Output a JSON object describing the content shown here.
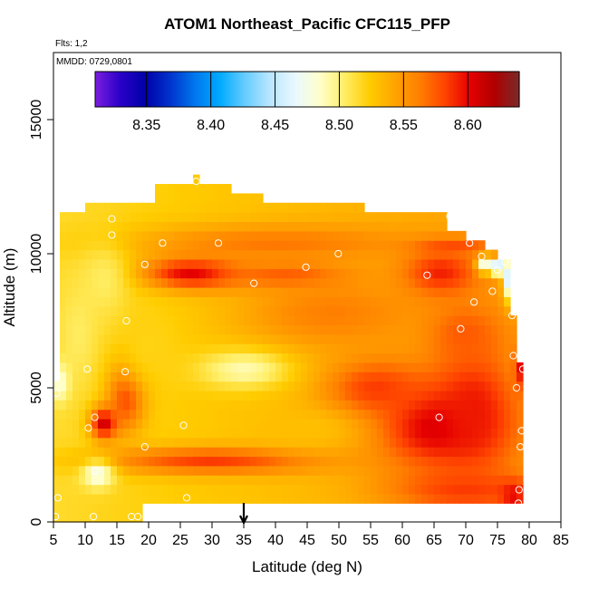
{
  "chart_data": {
    "type": "heatmap",
    "title": "ATOM1 Northeast_Pacific CFC115_PFP",
    "flights_label": "Flts: 1,2",
    "date_label": "MMDD: 0729,0801",
    "xlabel": "Latitude (deg N)",
    "ylabel": "Altitude (m)",
    "xlim": [
      5,
      85
    ],
    "ylim": [
      0,
      17500
    ],
    "x_ticks": [
      "5",
      "10",
      "15",
      "20",
      "25",
      "30",
      "35",
      "40",
      "45",
      "50",
      "55",
      "60",
      "65",
      "70",
      "75",
      "80",
      "85"
    ],
    "y_ticks": [
      "0",
      "5000",
      "10000",
      "15000"
    ],
    "colorbar": {
      "range": [
        8.31,
        8.64
      ],
      "ticks": [
        "8.35",
        "8.40",
        "8.45",
        "8.50",
        "8.55",
        "8.60"
      ],
      "colors": [
        "#7b1fe0",
        "#2a00c8",
        "#0000a8",
        "#0033cc",
        "#0077ee",
        "#00aaff",
        "#66ccff",
        "#b8e6ff",
        "#e8f8ff",
        "#ffffcc",
        "#ffee66",
        "#ffcc00",
        "#ffa500",
        "#ff7f00",
        "#ff4500",
        "#e60000",
        "#b00000",
        "#7a2a2a"
      ]
    },
    "marker_latitude": 35,
    "columns": [
      {
        "lat": [
          5,
          6
        ],
        "alt": [
          0,
          5200
        ]
      },
      {
        "lat": [
          6,
          10
        ],
        "alt": [
          0,
          11600
        ]
      },
      {
        "lat": [
          10,
          13
        ],
        "alt": [
          0,
          11800
        ]
      },
      {
        "lat": [
          13,
          18
        ],
        "alt": [
          0,
          11800
        ]
      },
      {
        "lat": [
          18,
          19.5
        ],
        "alt": [
          0,
          12000
        ]
      },
      {
        "lat": [
          19.5,
          21
        ],
        "alt": [
          700,
          12000
        ]
      },
      {
        "lat": [
          21,
          27
        ],
        "alt": [
          700,
          12500
        ]
      },
      {
        "lat": [
          27,
          28
        ],
        "alt": [
          700,
          13000
        ]
      },
      {
        "lat": [
          28,
          33
        ],
        "alt": [
          700,
          12500
        ]
      },
      {
        "lat": [
          33,
          38
        ],
        "alt": [
          700,
          12200
        ]
      },
      {
        "lat": [
          38,
          42
        ],
        "alt": [
          700,
          11800
        ]
      },
      {
        "lat": [
          42,
          54
        ],
        "alt": [
          700,
          11800
        ]
      },
      {
        "lat": [
          54,
          67
        ],
        "alt": [
          700,
          11400
        ]
      },
      {
        "lat": [
          67,
          70
        ],
        "alt": [
          700,
          11000
        ]
      },
      {
        "lat": [
          70,
          73
        ],
        "alt": [
          700,
          10600
        ]
      },
      {
        "lat": [
          73,
          75
        ],
        "alt": [
          700,
          10200
        ]
      },
      {
        "lat": [
          75,
          77.5
        ],
        "alt": [
          700,
          9900
        ]
      },
      {
        "lat": [
          77.5,
          78.5
        ],
        "alt": [
          700,
          7700
        ]
      },
      {
        "lat": [
          78.5,
          79.5
        ],
        "alt": [
          700,
          5900
        ]
      }
    ],
    "features": [
      {
        "lat": 66,
        "alt": 3600,
        "v": 8.61,
        "slat": 10,
        "salt": 1600
      },
      {
        "lat": 71,
        "alt": 4300,
        "v": 8.595,
        "slat": 6,
        "salt": 2300
      },
      {
        "lat": 56,
        "alt": 5000,
        "v": 8.585,
        "slat": 8,
        "salt": 1100
      },
      {
        "lat": 30,
        "alt": 2300,
        "v": 8.585,
        "slat": 17,
        "salt": 500
      },
      {
        "lat": 70,
        "alt": 1200,
        "v": 8.585,
        "slat": 12,
        "salt": 800
      },
      {
        "lat": 13,
        "alt": 3700,
        "v": 8.615,
        "slat": 2.2,
        "salt": 600
      },
      {
        "lat": 16.5,
        "alt": 4700,
        "v": 8.585,
        "slat": 3,
        "salt": 1300
      },
      {
        "lat": 27,
        "alt": 9300,
        "v": 8.608,
        "slat": 8,
        "salt": 600
      },
      {
        "lat": 42,
        "alt": 9200,
        "v": 8.578,
        "slat": 10,
        "salt": 500
      },
      {
        "lat": 66,
        "alt": 9300,
        "v": 8.595,
        "slat": 6,
        "salt": 900
      },
      {
        "lat": 40,
        "alt": 10400,
        "v": 8.565,
        "slat": 22,
        "salt": 700
      },
      {
        "lat": 68,
        "alt": 10300,
        "v": 8.58,
        "slat": 6,
        "salt": 300
      },
      {
        "lat": 49,
        "alt": 7800,
        "v": 8.562,
        "slat": 14,
        "salt": 1300
      },
      {
        "lat": 70,
        "alt": 7000,
        "v": 8.575,
        "slat": 6,
        "salt": 1200
      },
      {
        "lat": 35,
        "alt": 5700,
        "v": 8.49,
        "slat": 7,
        "salt": 700
      },
      {
        "lat": 9,
        "alt": 7000,
        "v": 8.505,
        "slat": 3,
        "salt": 1800
      },
      {
        "lat": 12,
        "alt": 1800,
        "v": 8.475,
        "slat": 2.5,
        "salt": 500
      },
      {
        "lat": 6,
        "alt": 5200,
        "v": 8.48,
        "slat": 1.5,
        "salt": 700
      },
      {
        "lat": 13,
        "alt": 9000,
        "v": 8.505,
        "slat": 4,
        "salt": 1500
      },
      {
        "lat": 20,
        "alt": 6500,
        "v": 8.52,
        "slat": 5,
        "salt": 1500
      },
      {
        "lat": 45,
        "alt": 3500,
        "v": 8.53,
        "slat": 8,
        "salt": 700
      },
      {
        "lat": 75,
        "alt": 9500,
        "v": 8.4,
        "slat": 0.9,
        "salt": 250
      },
      {
        "lat": 73,
        "alt": 9600,
        "v": 8.465,
        "slat": 1.2,
        "salt": 300
      },
      {
        "lat": 77,
        "alt": 9100,
        "v": 8.435,
        "slat": 1.0,
        "salt": 800
      },
      {
        "lat": 78.5,
        "alt": 5800,
        "v": 8.6,
        "slat": 0.8,
        "salt": 800
      },
      {
        "lat": 77.5,
        "alt": 1000,
        "v": 8.6,
        "slat": 2,
        "salt": 500
      }
    ],
    "samples": [
      {
        "lat": 5.5,
        "alt": 4800
      },
      {
        "lat": 5.7,
        "alt": 900
      },
      {
        "lat": 5.3,
        "alt": 200
      },
      {
        "lat": 10.3,
        "alt": 5700
      },
      {
        "lat": 10.5,
        "alt": 3500
      },
      {
        "lat": 11.5,
        "alt": 3900
      },
      {
        "lat": 11.3,
        "alt": 200
      },
      {
        "lat": 11.5,
        "alt": 1900
      },
      {
        "lat": 14.2,
        "alt": 11300
      },
      {
        "lat": 14.2,
        "alt": 10700
      },
      {
        "lat": 16.3,
        "alt": 5600
      },
      {
        "lat": 16.5,
        "alt": 7500
      },
      {
        "lat": 17.3,
        "alt": 200
      },
      {
        "lat": 18.3,
        "alt": 200
      },
      {
        "lat": 19.4,
        "alt": 9600
      },
      {
        "lat": 19.4,
        "alt": 2800
      },
      {
        "lat": 22.2,
        "alt": 10400
      },
      {
        "lat": 25.5,
        "alt": 3600
      },
      {
        "lat": 26,
        "alt": 900
      },
      {
        "lat": 27.5,
        "alt": 12700
      },
      {
        "lat": 31,
        "alt": 10400
      },
      {
        "lat": 36.6,
        "alt": 8900
      },
      {
        "lat": 44.8,
        "alt": 9500
      },
      {
        "lat": 49.9,
        "alt": 10000
      },
      {
        "lat": 63.9,
        "alt": 9200
      },
      {
        "lat": 65.8,
        "alt": 3900
      },
      {
        "lat": 67.5,
        "alt": 11400
      },
      {
        "lat": 69.2,
        "alt": 7200
      },
      {
        "lat": 70.6,
        "alt": 10400
      },
      {
        "lat": 71.3,
        "alt": 8200
      },
      {
        "lat": 72.5,
        "alt": 9900
      },
      {
        "lat": 74.2,
        "alt": 8600
      },
      {
        "lat": 75,
        "alt": 9400
      },
      {
        "lat": 76.2,
        "alt": 9700
      },
      {
        "lat": 77.3,
        "alt": 7700
      },
      {
        "lat": 77.5,
        "alt": 6200
      },
      {
        "lat": 78,
        "alt": 5000
      },
      {
        "lat": 78.4,
        "alt": 1200
      },
      {
        "lat": 78.3,
        "alt": 700
      },
      {
        "lat": 78.8,
        "alt": 3400
      },
      {
        "lat": 78.6,
        "alt": 2800
      },
      {
        "lat": 79,
        "alt": 5700
      }
    ]
  }
}
